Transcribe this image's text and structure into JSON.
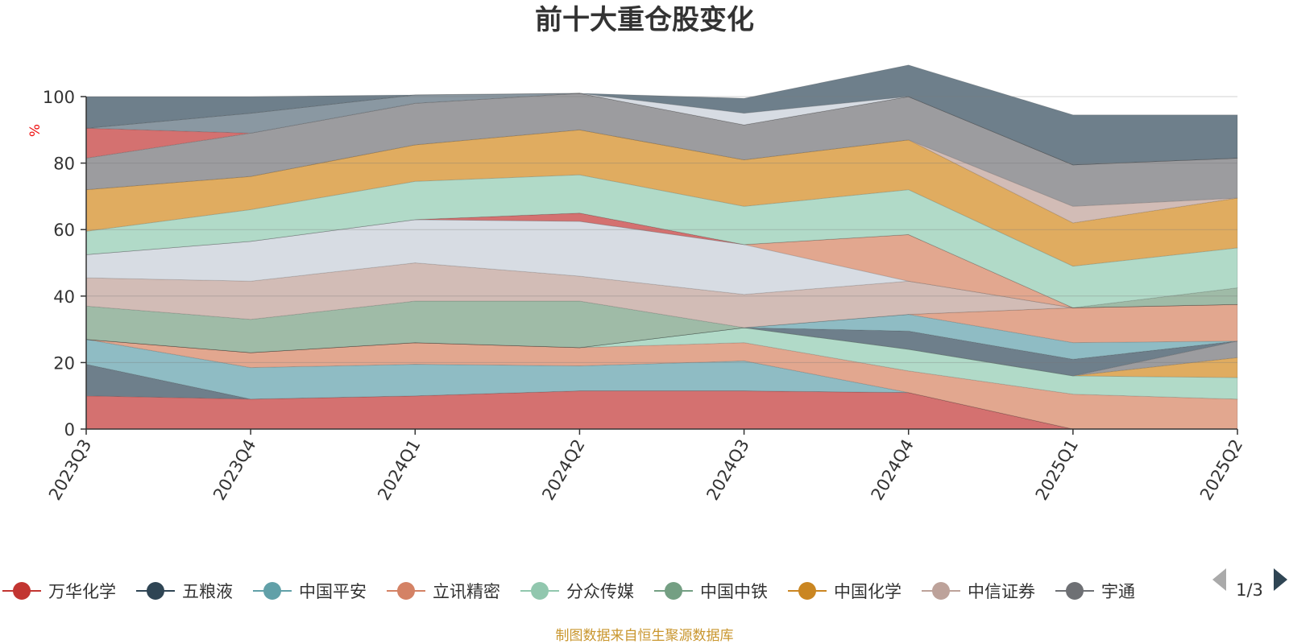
{
  "chart_data": {
    "type": "area",
    "title": "前十大重仓股变化",
    "y_unit": "%",
    "ylim": [
      0,
      100
    ],
    "y_ticks": [
      "0",
      "20",
      "40",
      "60",
      "80",
      "100"
    ],
    "categories": [
      "2023Q3",
      "2023Q4",
      "2024Q1",
      "2024Q2",
      "2024Q3",
      "2024Q4",
      "2025Q1",
      "2025Q2"
    ],
    "stacked": true,
    "grid": true,
    "layers": [
      {
        "color": "#d47170",
        "values": [
          10,
          9,
          10,
          11.5,
          11.5,
          11,
          0,
          0
        ]
      },
      {
        "color": "#6e7f8b",
        "values": [
          9.5,
          0,
          0,
          0,
          0,
          0,
          0,
          0
        ]
      },
      {
        "color": "#8fbcc4",
        "values": [
          7.5,
          9.5,
          9.5,
          7.5,
          9,
          0,
          0,
          0
        ]
      },
      {
        "color": "#e2a78f",
        "values": [
          0,
          4.5,
          6.5,
          5.5,
          5.5,
          6.5,
          10.5,
          9
        ]
      },
      {
        "color": "#b1dac8",
        "values": [
          0,
          0,
          0,
          0,
          4.5,
          6.5,
          5.5,
          6.5
        ]
      },
      {
        "color": "#e0ac60",
        "values": [
          0,
          0,
          0,
          0,
          0,
          0,
          0,
          6
        ]
      },
      {
        "color": "#9c9c9f",
        "values": [
          0,
          0,
          0,
          0,
          0,
          0,
          0,
          5
        ]
      },
      {
        "color": "#d2bcb6",
        "values": [
          0,
          0,
          0,
          0,
          0,
          0,
          0,
          0
        ]
      },
      {
        "color": "#6e7f8b",
        "values": [
          0,
          0,
          0,
          0,
          0,
          5.5,
          5,
          0
        ]
      },
      {
        "color": "#8fbcc4",
        "values": [
          0,
          0,
          0,
          0,
          0,
          5,
          5,
          0
        ]
      },
      {
        "color": "#e2a78f",
        "values": [
          0,
          0,
          0,
          0,
          0,
          0,
          10.5,
          11
        ]
      },
      {
        "color": "#9fbba7",
        "values": [
          10,
          10,
          12.5,
          14,
          0,
          0,
          0,
          0
        ]
      },
      {
        "color": "#d2bcb6",
        "values": [
          8.5,
          11.5,
          11.5,
          7.5,
          10,
          10,
          0,
          0
        ]
      },
      {
        "color": "#d7dce3",
        "values": [
          7,
          12,
          13,
          16.5,
          15,
          0,
          0,
          0
        ]
      },
      {
        "color": "#e2a78f",
        "values": [
          0,
          0,
          0,
          0,
          0,
          14,
          0,
          0
        ]
      },
      {
        "color": "#d47170",
        "values": [
          0,
          0,
          0,
          2.5,
          0,
          0,
          0,
          0
        ]
      },
      {
        "color": "#9fbba7",
        "values": [
          0,
          0,
          0,
          0,
          0,
          0,
          0,
          5
        ]
      },
      {
        "color": "#b1dac8",
        "values": [
          7,
          9.5,
          11.5,
          11.5,
          11.5,
          13.5,
          12.5,
          12
        ]
      },
      {
        "color": "#e0ac60",
        "values": [
          12.5,
          10,
          11,
          13.5,
          14,
          15,
          13,
          15
        ]
      },
      {
        "color": "#d2bcb6",
        "values": [
          0,
          0,
          0,
          0,
          0,
          0,
          5,
          0
        ]
      },
      {
        "color": "#9c9c9f",
        "values": [
          9.5,
          13,
          12.5,
          11,
          10.5,
          13,
          12.5,
          12
        ]
      },
      {
        "color": "#d47170",
        "values": [
          9,
          0,
          0,
          0,
          0,
          0,
          0,
          0
        ]
      },
      {
        "color": "#8a98a2",
        "values": [
          0,
          6,
          2.5,
          0,
          0,
          0,
          0,
          0
        ]
      },
      {
        "color": "#d7dce3",
        "values": [
          0,
          0,
          0,
          0,
          3.5,
          0,
          0,
          0
        ]
      },
      {
        "color": "#6e7f8b",
        "values": [
          9.5,
          5,
          0,
          0,
          4.5,
          9.5,
          15,
          13
        ]
      }
    ],
    "legend": {
      "position": "bottom",
      "items": [
        {
          "name": "万华化学",
          "color": "#c23531"
        },
        {
          "name": "五粮液",
          "color": "#2f4554"
        },
        {
          "name": "中国平安",
          "color": "#61a0a8"
        },
        {
          "name": "立讯精密",
          "color": "#d48265"
        },
        {
          "name": "分众传媒",
          "color": "#91c7ae"
        },
        {
          "name": "中国中铁",
          "color": "#749f83"
        },
        {
          "name": "中国化学",
          "color": "#ca8622"
        },
        {
          "name": "中信证券",
          "color": "#bda29a"
        },
        {
          "name": "宇通",
          "color": "#6e7074"
        }
      ],
      "page": "1/3"
    },
    "footer": "制图数据来自恒生聚源数据库"
  }
}
